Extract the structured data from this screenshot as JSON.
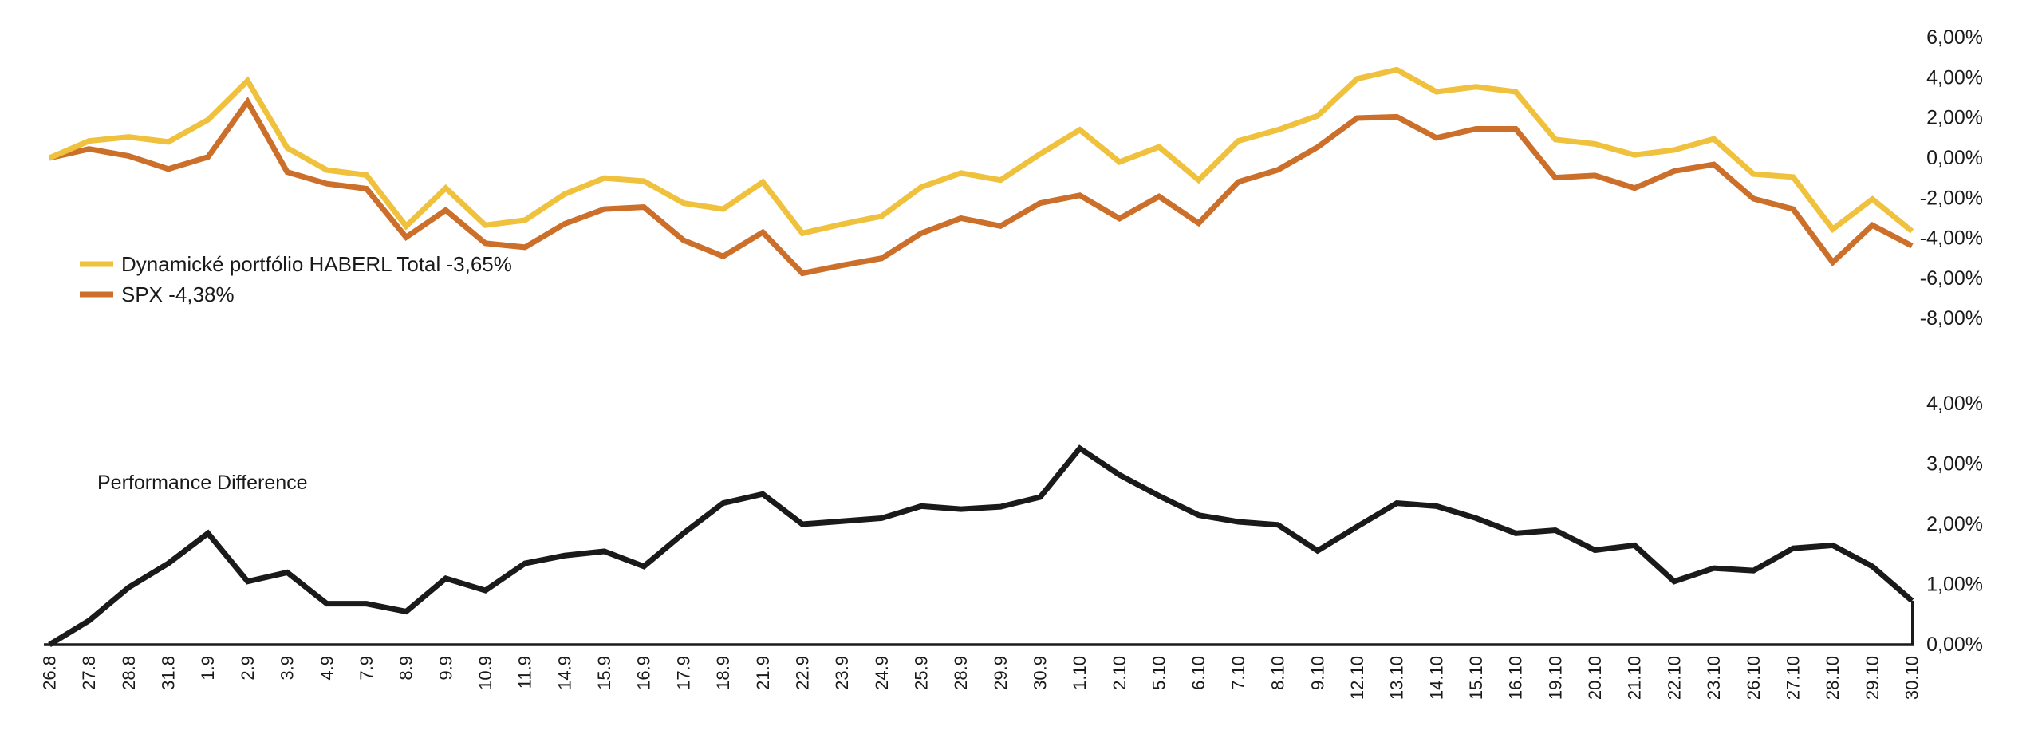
{
  "background": "#ffffff",
  "chart_data": [
    {
      "type": "line",
      "title": "",
      "x": [
        "26.8",
        "27.8",
        "28.8",
        "31.8",
        "1.9",
        "2.9",
        "3.9",
        "4.9",
        "7.9",
        "8.9",
        "9.9",
        "10.9",
        "11.9",
        "14.9",
        "15.9",
        "16.9",
        "17.9",
        "18.9",
        "21.9",
        "22.9",
        "23.9",
        "24.9",
        "25.9",
        "28.9",
        "29.9",
        "30.9",
        "1.10",
        "2.10",
        "5.10",
        "6.10",
        "7.10",
        "8.10",
        "9.10",
        "12.10",
        "13.10",
        "14.10",
        "15.10",
        "16.10",
        "19.10",
        "20.10",
        "21.10",
        "22.10",
        "23.10",
        "26.10",
        "27.10",
        "28.10",
        "29.10",
        "30.10"
      ],
      "series": [
        {
          "name": "Dynamické portfólio  HABERL Total -3,65%",
          "color": "#EFC13C",
          "values": [
            0.0,
            0.85,
            1.05,
            0.8,
            1.9,
            3.85,
            0.5,
            -0.6,
            -0.85,
            -3.4,
            -1.5,
            -3.35,
            -3.1,
            -1.8,
            -1.0,
            -1.15,
            -2.25,
            -2.55,
            -1.2,
            -3.75,
            -3.3,
            -2.9,
            -1.45,
            -0.75,
            -1.1,
            0.2,
            1.4,
            -0.2,
            0.55,
            -1.1,
            0.85,
            1.4,
            2.1,
            3.95,
            4.4,
            3.3,
            3.55,
            3.3,
            0.92,
            0.7,
            0.15,
            0.4,
            0.95,
            -0.8,
            -0.95,
            -3.55,
            -2.05,
            -3.65
          ]
        },
        {
          "name": "SPX -4,38%",
          "color": "#CB6F2A",
          "values": [
            0.0,
            0.45,
            0.1,
            -0.55,
            0.05,
            2.8,
            -0.7,
            -1.28,
            -1.53,
            -3.95,
            -2.6,
            -4.25,
            -4.45,
            -3.28,
            -2.55,
            -2.45,
            -4.1,
            -4.9,
            -3.7,
            -5.75,
            -5.35,
            -5.0,
            -3.75,
            -3.0,
            -3.39,
            -2.25,
            -1.86,
            -3.02,
            -1.92,
            -3.25,
            -1.19,
            -0.59,
            0.54,
            1.99,
            2.05,
            1.0,
            1.45,
            1.45,
            -0.98,
            -0.87,
            -1.5,
            -0.65,
            -0.32,
            -2.03,
            -2.55,
            -5.2,
            -3.35,
            -4.38
          ]
        }
      ],
      "ylim": [
        -8,
        6
      ],
      "y_ticks": [
        6,
        4,
        2,
        0,
        -2,
        -4,
        -6,
        -8
      ],
      "y_tick_labels": [
        "6,00%",
        "4,00%",
        "2,00%",
        "0,00%",
        "-2,00%",
        "-4,00%",
        "-6,00%",
        "-8,00%"
      ],
      "grid": false,
      "legend_position": "left-middle"
    },
    {
      "type": "line",
      "title": "Performance Difference",
      "x": [
        "26.8",
        "27.8",
        "28.8",
        "31.8",
        "1.9",
        "2.9",
        "3.9",
        "4.9",
        "7.9",
        "8.9",
        "9.9",
        "10.9",
        "11.9",
        "14.9",
        "15.9",
        "16.9",
        "17.9",
        "18.9",
        "21.9",
        "22.9",
        "23.9",
        "24.9",
        "25.9",
        "28.9",
        "29.9",
        "30.9",
        "1.10",
        "2.10",
        "5.10",
        "6.10",
        "7.10",
        "8.10",
        "9.10",
        "12.10",
        "13.10",
        "14.10",
        "15.10",
        "16.10",
        "19.10",
        "20.10",
        "21.10",
        "22.10",
        "23.10",
        "26.10",
        "27.10",
        "28.10",
        "29.10",
        "30.10"
      ],
      "series": [
        {
          "name": "Performance Difference",
          "color": "#1A1A1A",
          "values": [
            0.0,
            0.4,
            0.95,
            1.35,
            1.85,
            1.05,
            1.2,
            0.68,
            0.68,
            0.55,
            1.1,
            0.9,
            1.35,
            1.48,
            1.55,
            1.3,
            1.85,
            2.35,
            2.5,
            2.0,
            2.05,
            2.1,
            2.3,
            2.25,
            2.29,
            2.45,
            3.26,
            2.82,
            2.47,
            2.15,
            2.04,
            1.99,
            1.56,
            1.96,
            2.35,
            2.3,
            2.1,
            1.85,
            1.9,
            1.57,
            1.65,
            1.05,
            1.27,
            1.23,
            1.6,
            1.65,
            1.3,
            0.73
          ]
        }
      ],
      "ylim": [
        0,
        4
      ],
      "y_ticks": [
        4,
        3,
        2,
        1,
        0
      ],
      "y_tick_labels": [
        "4,00%",
        "3,00%",
        "2,00%",
        "1,00%",
        "0,00%"
      ],
      "grid": false,
      "legend_position": "none"
    }
  ]
}
